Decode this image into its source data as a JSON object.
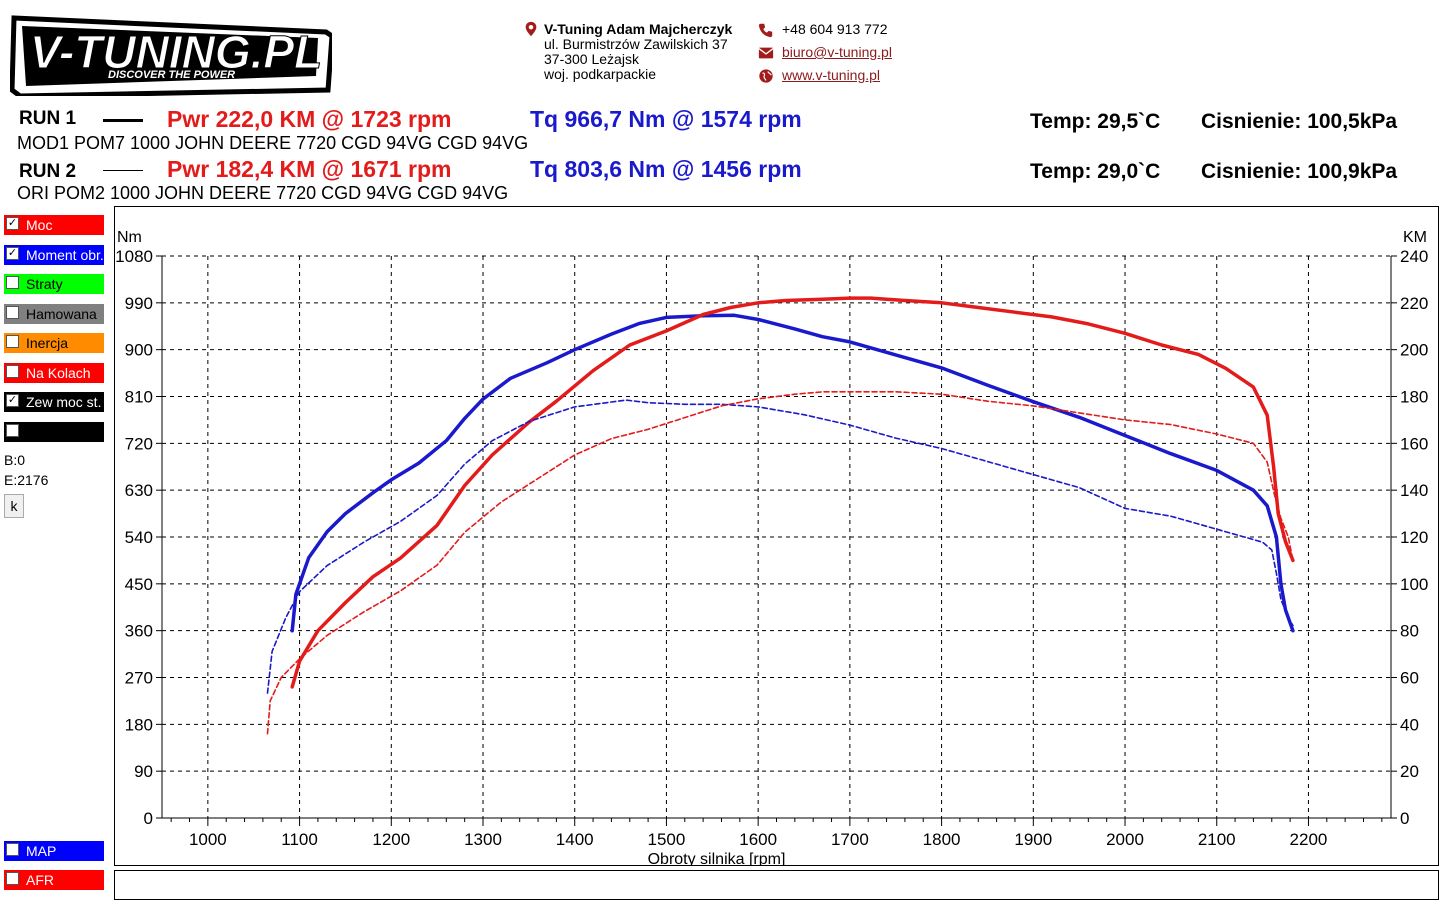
{
  "header": {
    "logo": {
      "main": "V-TUNING.PL",
      "tagline": "DISCOVER THE POWER"
    },
    "contact": {
      "company": "V-Tuning Adam Majcherczyk",
      "street": "ul. Burmistrzów Zawilskich 37",
      "city": "37-300 Leżajsk",
      "region": "woj. podkarpackie",
      "phone": "+48 604 913 772",
      "email": "biuro@v-tuning.pl",
      "website": "www.v-tuning.pl"
    }
  },
  "runs": [
    {
      "label": "RUN 1",
      "pwr": "Pwr  222,0 KM @ 1723 rpm",
      "tq": "Tq 966,7 Nm @ 1574 rpm",
      "temp": "Temp: 29,5`C",
      "pressure": "Cisnienie: 100,5kPa",
      "desc": "MOD1 POM7 1000 JOHN DEERE 7720 CGD 94VG CGD 94VG",
      "line_style": "solid"
    },
    {
      "label": "RUN 2",
      "pwr": "Pwr  182,4 KM @ 1671 rpm",
      "tq": "Tq 803,6 Nm @ 1456 rpm",
      "temp": "Temp: 29,0`C",
      "pressure": "Cisnienie: 100,9kPa",
      "desc": "ORI POM2 1000 JOHN DEERE 7720 CGD 94VG CGD 94VG",
      "line_style": "dashed"
    }
  ],
  "legend": [
    {
      "label": "Moc",
      "color": "#ff0000",
      "text_color": "#ffffff",
      "checked": true
    },
    {
      "label": "Moment obr.",
      "color": "#0000ff",
      "text_color": "#ffffff",
      "checked": true
    },
    {
      "label": "Straty",
      "color": "#00ff00",
      "text_color": "#000000",
      "checked": false
    },
    {
      "label": "Hamowana",
      "color": "#808080",
      "text_color": "#000000",
      "checked": false
    },
    {
      "label": "Inercja",
      "color": "#ff8c00",
      "text_color": "#000000",
      "checked": false
    },
    {
      "label": "Na Kolach",
      "color": "#ff0000",
      "text_color": "#ffffff",
      "checked": false
    },
    {
      "label": "Zew moc st.",
      "color": "#000000",
      "text_color": "#ffffff",
      "checked": true
    },
    {
      "label": "",
      "color": "#000000",
      "text_color": "#ffffff",
      "checked": false
    }
  ],
  "legend_bottom": [
    {
      "label": "MAP",
      "color": "#0000ff",
      "text_color": "#ffffff",
      "checked": false
    },
    {
      "label": "AFR",
      "color": "#ff0000",
      "text_color": "#ffffff",
      "checked": false
    }
  ],
  "side": {
    "b": "B:0",
    "e": "E:2176",
    "k_button": "k"
  },
  "colors": {
    "power": "#e31b1b",
    "torque": "#1a1acc"
  },
  "chart_data": {
    "type": "line",
    "xlabel": "Obroty silnika [rpm]",
    "ylabel_left": "Nm",
    "ylabel_right": "KM",
    "xlim": [
      950,
      2290
    ],
    "ylim_left": [
      0,
      1080
    ],
    "ylim_right": [
      0,
      240
    ],
    "x_ticks": [
      1000,
      1100,
      1200,
      1300,
      1400,
      1500,
      1600,
      1700,
      1800,
      1900,
      2000,
      2100,
      2200
    ],
    "y_left_ticks": [
      0,
      90,
      180,
      270,
      360,
      450,
      540,
      630,
      720,
      810,
      900,
      990,
      1080
    ],
    "y_right_ticks": [
      0,
      20,
      40,
      60,
      80,
      100,
      120,
      140,
      160,
      180,
      200,
      220,
      240
    ],
    "grid": true,
    "series": [
      {
        "run": "RUN 1",
        "quantity": "torque",
        "axis": "left",
        "color": "#1a1acc",
        "style": "solid",
        "points": [
          [
            1092,
            360
          ],
          [
            1096,
            430
          ],
          [
            1110,
            500
          ],
          [
            1130,
            550
          ],
          [
            1150,
            585
          ],
          [
            1180,
            625
          ],
          [
            1200,
            650
          ],
          [
            1230,
            682
          ],
          [
            1260,
            725
          ],
          [
            1280,
            768
          ],
          [
            1300,
            805
          ],
          [
            1330,
            845
          ],
          [
            1370,
            875
          ],
          [
            1400,
            900
          ],
          [
            1440,
            930
          ],
          [
            1470,
            950
          ],
          [
            1500,
            962
          ],
          [
            1540,
            965
          ],
          [
            1574,
            966
          ],
          [
            1600,
            958
          ],
          [
            1640,
            940
          ],
          [
            1670,
            925
          ],
          [
            1700,
            915
          ],
          [
            1750,
            890
          ],
          [
            1800,
            865
          ],
          [
            1850,
            832
          ],
          [
            1900,
            800
          ],
          [
            1950,
            770
          ],
          [
            2000,
            735
          ],
          [
            2050,
            700
          ],
          [
            2100,
            668
          ],
          [
            2140,
            630
          ],
          [
            2155,
            600
          ],
          [
            2165,
            540
          ],
          [
            2170,
            450
          ],
          [
            2175,
            400
          ],
          [
            2183,
            360
          ]
        ]
      },
      {
        "run": "RUN 1",
        "quantity": "power",
        "axis": "right",
        "color": "#e31b1b",
        "style": "solid",
        "points": [
          [
            1092,
            56
          ],
          [
            1100,
            67
          ],
          [
            1120,
            80
          ],
          [
            1150,
            92
          ],
          [
            1180,
            103
          ],
          [
            1210,
            111
          ],
          [
            1250,
            125
          ],
          [
            1280,
            142
          ],
          [
            1310,
            155
          ],
          [
            1350,
            169
          ],
          [
            1380,
            178
          ],
          [
            1420,
            191
          ],
          [
            1460,
            202
          ],
          [
            1500,
            208
          ],
          [
            1540,
            215
          ],
          [
            1570,
            218
          ],
          [
            1600,
            220
          ],
          [
            1630,
            221
          ],
          [
            1670,
            221.5
          ],
          [
            1700,
            222
          ],
          [
            1723,
            222
          ],
          [
            1760,
            221
          ],
          [
            1800,
            220
          ],
          [
            1840,
            218
          ],
          [
            1880,
            216
          ],
          [
            1920,
            214
          ],
          [
            1960,
            211
          ],
          [
            2000,
            207
          ],
          [
            2040,
            202
          ],
          [
            2080,
            198
          ],
          [
            2110,
            192
          ],
          [
            2140,
            184
          ],
          [
            2155,
            172
          ],
          [
            2162,
            150
          ],
          [
            2167,
            130
          ],
          [
            2175,
            118
          ],
          [
            2183,
            110
          ]
        ]
      },
      {
        "run": "RUN 2",
        "quantity": "torque",
        "axis": "left",
        "color": "#1a1acc",
        "style": "dashed",
        "points": [
          [
            1065,
            240
          ],
          [
            1070,
            320
          ],
          [
            1085,
            385
          ],
          [
            1100,
            435
          ],
          [
            1130,
            485
          ],
          [
            1170,
            530
          ],
          [
            1210,
            570
          ],
          [
            1250,
            620
          ],
          [
            1280,
            680
          ],
          [
            1310,
            725
          ],
          [
            1350,
            762
          ],
          [
            1400,
            790
          ],
          [
            1456,
            803
          ],
          [
            1480,
            798
          ],
          [
            1520,
            795
          ],
          [
            1560,
            795
          ],
          [
            1600,
            790
          ],
          [
            1650,
            775
          ],
          [
            1700,
            755
          ],
          [
            1750,
            730
          ],
          [
            1800,
            710
          ],
          [
            1850,
            685
          ],
          [
            1900,
            660
          ],
          [
            1950,
            635
          ],
          [
            2000,
            595
          ],
          [
            2050,
            580
          ],
          [
            2100,
            555
          ],
          [
            2130,
            540
          ],
          [
            2150,
            530
          ],
          [
            2160,
            515
          ],
          [
            2165,
            470
          ],
          [
            2170,
            420
          ],
          [
            2178,
            385
          ],
          [
            2183,
            370
          ]
        ]
      },
      {
        "run": "RUN 2",
        "quantity": "power",
        "axis": "right",
        "color": "#e31b1b",
        "style": "dashed",
        "points": [
          [
            1065,
            36
          ],
          [
            1068,
            50
          ],
          [
            1080,
            60
          ],
          [
            1100,
            68
          ],
          [
            1130,
            78
          ],
          [
            1170,
            88
          ],
          [
            1210,
            97
          ],
          [
            1250,
            108
          ],
          [
            1280,
            122
          ],
          [
            1320,
            135
          ],
          [
            1360,
            145
          ],
          [
            1400,
            155
          ],
          [
            1440,
            162
          ],
          [
            1480,
            166
          ],
          [
            1520,
            171
          ],
          [
            1560,
            176
          ],
          [
            1600,
            179
          ],
          [
            1640,
            181
          ],
          [
            1671,
            182
          ],
          [
            1700,
            182
          ],
          [
            1750,
            182
          ],
          [
            1800,
            181
          ],
          [
            1850,
            178
          ],
          [
            1900,
            176
          ],
          [
            1950,
            173
          ],
          [
            2000,
            170
          ],
          [
            2050,
            168
          ],
          [
            2100,
            164
          ],
          [
            2140,
            160
          ],
          [
            2155,
            152
          ],
          [
            2163,
            138
          ],
          [
            2170,
            128
          ],
          [
            2178,
            120
          ],
          [
            2183,
            110
          ]
        ]
      }
    ]
  }
}
